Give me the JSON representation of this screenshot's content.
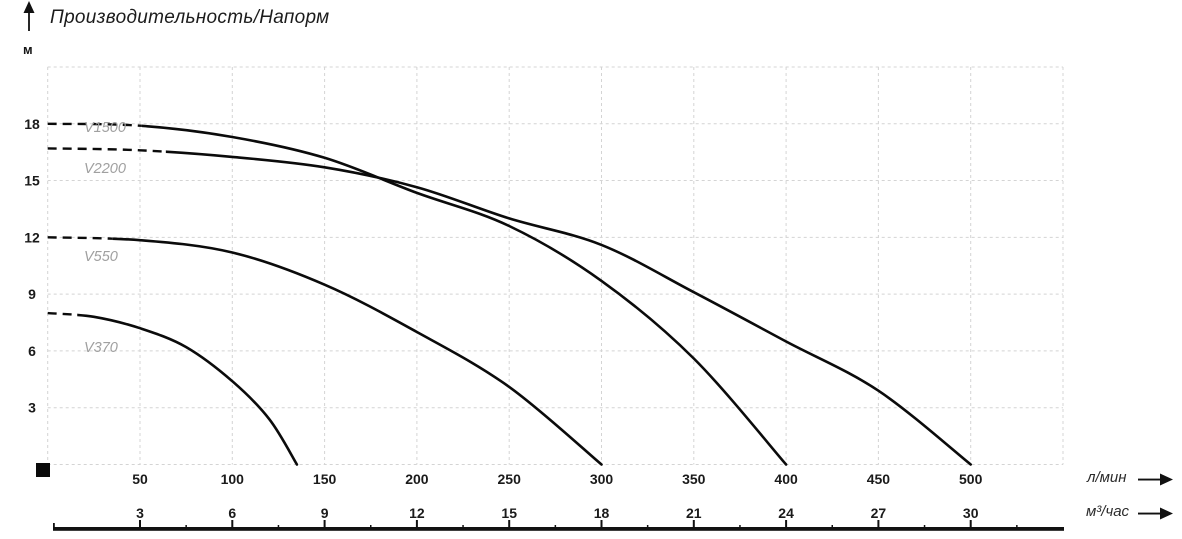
{
  "title": "Производительность/Напорм",
  "chart_data": {
    "type": "line",
    "title": "Производительность/Напорм",
    "ylabel": "м",
    "x_units": [
      "л/мин",
      "м³/час"
    ],
    "y_ticks": [
      3,
      6,
      9,
      12,
      15,
      18
    ],
    "x_ticks_lmin": [
      50,
      100,
      150,
      200,
      250,
      300,
      350,
      400,
      450,
      500
    ],
    "x_ticks_m3h": [
      3,
      6,
      9,
      12,
      15,
      18,
      21,
      24,
      27,
      30
    ],
    "xlim_lmin": [
      0,
      550
    ],
    "ylim": [
      0,
      21
    ],
    "grid": "dashed",
    "legend_position": "inline-left",
    "series": [
      {
        "name": "V1500",
        "dash_until_lmin": 51,
        "points_lmin_m": [
          [
            0,
            18
          ],
          [
            50,
            17.9
          ],
          [
            100,
            17.3
          ],
          [
            150,
            16.2
          ],
          [
            200,
            14.35
          ],
          [
            250,
            12.6
          ],
          [
            300,
            9.7
          ],
          [
            350,
            5.6
          ],
          [
            400,
            0
          ]
        ]
      },
      {
        "name": "V2200",
        "dash_until_lmin": 64,
        "points_lmin_m": [
          [
            0,
            16.7
          ],
          [
            50,
            16.6
          ],
          [
            100,
            16.25
          ],
          [
            150,
            15.7
          ],
          [
            200,
            14.65
          ],
          [
            250,
            13.0
          ],
          [
            300,
            11.6
          ],
          [
            350,
            9.1
          ],
          [
            400,
            6.5
          ],
          [
            450,
            3.9
          ],
          [
            500,
            0
          ]
        ]
      },
      {
        "name": "V550",
        "dash_until_lmin": 35,
        "points_lmin_m": [
          [
            0,
            12
          ],
          [
            50,
            11.85
          ],
          [
            100,
            11.2
          ],
          [
            150,
            9.5
          ],
          [
            200,
            7.0
          ],
          [
            250,
            4.1
          ],
          [
            300,
            0
          ]
        ]
      },
      {
        "name": "V370",
        "dash_until_lmin": 16,
        "points_lmin_m": [
          [
            0,
            8
          ],
          [
            25,
            7.8
          ],
          [
            50,
            7.2
          ],
          [
            75,
            6.2
          ],
          [
            100,
            4.4
          ],
          [
            120,
            2.4
          ],
          [
            135,
            0
          ]
        ]
      }
    ],
    "colors": {
      "curve": "#0b0b0b",
      "grid": "#d4d4d4",
      "curve_label": "#a0a0a0",
      "text": "#1a1a1a",
      "axis": "#111111"
    }
  }
}
